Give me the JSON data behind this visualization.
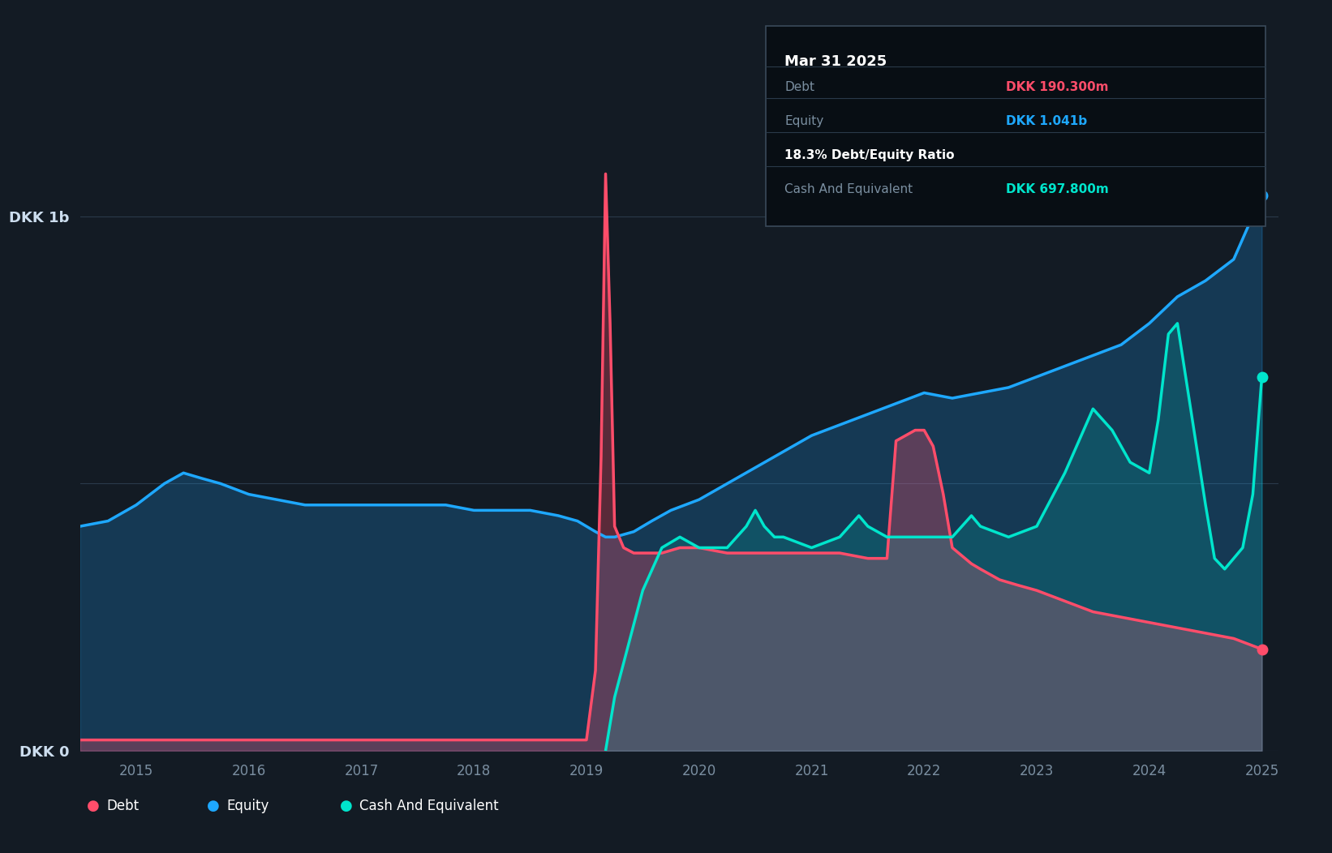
{
  "bg_color": "#131B24",
  "plot_bg_color": "#131B24",
  "grid_color": "#2a3a4a",
  "debt_color": "#FF4D6A",
  "equity_color": "#1EA8FF",
  "cash_color": "#00E5CC",
  "ylabel_top": "DKK 1b",
  "ylabel_bottom": "DKK 0",
  "x_years": [
    2015,
    2016,
    2017,
    2018,
    2019,
    2020,
    2021,
    2022,
    2023,
    2024,
    2025
  ],
  "tooltip_title": "Mar 31 2025",
  "tooltip_debt_label": "Debt",
  "tooltip_debt_value": "DKK 190.300m",
  "tooltip_equity_label": "Equity",
  "tooltip_equity_value": "DKK 1.041b",
  "tooltip_ratio": "18.3% Debt/Equity Ratio",
  "tooltip_cash_label": "Cash And Equivalent",
  "tooltip_cash_value": "DKK 697.800m",
  "equity_x": [
    2014.5,
    2014.75,
    2015.0,
    2015.25,
    2015.42,
    2015.58,
    2015.75,
    2016.0,
    2016.25,
    2016.5,
    2016.75,
    2017.0,
    2017.25,
    2017.5,
    2017.75,
    2018.0,
    2018.25,
    2018.5,
    2018.75,
    2018.92,
    2019.0,
    2019.08,
    2019.17,
    2019.25,
    2019.42,
    2019.58,
    2019.75,
    2020.0,
    2020.25,
    2020.5,
    2020.75,
    2021.0,
    2021.25,
    2021.5,
    2021.75,
    2022.0,
    2022.25,
    2022.5,
    2022.75,
    2023.0,
    2023.25,
    2023.5,
    2023.75,
    2024.0,
    2024.25,
    2024.5,
    2024.75,
    2025.0
  ],
  "equity_y": [
    0.42,
    0.43,
    0.46,
    0.5,
    0.52,
    0.51,
    0.5,
    0.48,
    0.47,
    0.46,
    0.46,
    0.46,
    0.46,
    0.46,
    0.46,
    0.45,
    0.45,
    0.45,
    0.44,
    0.43,
    0.42,
    0.41,
    0.4,
    0.4,
    0.41,
    0.43,
    0.45,
    0.47,
    0.5,
    0.53,
    0.56,
    0.59,
    0.61,
    0.63,
    0.65,
    0.67,
    0.66,
    0.67,
    0.68,
    0.7,
    0.72,
    0.74,
    0.76,
    0.8,
    0.85,
    0.88,
    0.92,
    1.04
  ],
  "debt_x": [
    2014.5,
    2015.0,
    2015.25,
    2015.42,
    2015.5,
    2015.67,
    2015.83,
    2016.0,
    2016.5,
    2017.0,
    2017.5,
    2018.0,
    2018.5,
    2018.75,
    2018.92,
    2019.0,
    2019.08,
    2019.13,
    2019.17,
    2019.21,
    2019.25,
    2019.33,
    2019.42,
    2019.5,
    2019.67,
    2019.83,
    2020.0,
    2020.25,
    2020.5,
    2020.75,
    2021.0,
    2021.25,
    2021.5,
    2021.67,
    2021.75,
    2021.92,
    2022.0,
    2022.08,
    2022.17,
    2022.25,
    2022.42,
    2022.5,
    2022.67,
    2022.83,
    2023.0,
    2023.25,
    2023.5,
    2023.75,
    2024.0,
    2024.25,
    2024.5,
    2024.75,
    2025.0
  ],
  "debt_y": [
    0.02,
    0.02,
    0.02,
    0.02,
    0.02,
    0.02,
    0.02,
    0.02,
    0.02,
    0.02,
    0.02,
    0.02,
    0.02,
    0.02,
    0.02,
    0.02,
    0.15,
    0.55,
    1.08,
    0.8,
    0.42,
    0.38,
    0.37,
    0.37,
    0.37,
    0.38,
    0.38,
    0.37,
    0.37,
    0.37,
    0.37,
    0.37,
    0.36,
    0.36,
    0.58,
    0.6,
    0.6,
    0.57,
    0.48,
    0.38,
    0.35,
    0.34,
    0.32,
    0.31,
    0.3,
    0.28,
    0.26,
    0.25,
    0.24,
    0.23,
    0.22,
    0.21,
    0.19
  ],
  "cash_x": [
    2019.17,
    2019.25,
    2019.5,
    2019.67,
    2019.83,
    2020.0,
    2020.25,
    2020.42,
    2020.5,
    2020.58,
    2020.67,
    2020.75,
    2021.0,
    2021.25,
    2021.42,
    2021.5,
    2021.67,
    2021.75,
    2022.0,
    2022.25,
    2022.42,
    2022.5,
    2022.75,
    2023.0,
    2023.25,
    2023.5,
    2023.67,
    2023.83,
    2024.0,
    2024.08,
    2024.17,
    2024.25,
    2024.5,
    2024.58,
    2024.67,
    2024.75,
    2024.83,
    2024.92,
    2025.0
  ],
  "cash_y": [
    0.0,
    0.1,
    0.3,
    0.38,
    0.4,
    0.38,
    0.38,
    0.42,
    0.45,
    0.42,
    0.4,
    0.4,
    0.38,
    0.4,
    0.44,
    0.42,
    0.4,
    0.4,
    0.4,
    0.4,
    0.44,
    0.42,
    0.4,
    0.42,
    0.52,
    0.64,
    0.6,
    0.54,
    0.52,
    0.62,
    0.78,
    0.8,
    0.46,
    0.36,
    0.34,
    0.36,
    0.38,
    0.48,
    0.7
  ],
  "ylim": [
    0,
    1.15
  ],
  "xlim": [
    2014.5,
    2025.15
  ]
}
